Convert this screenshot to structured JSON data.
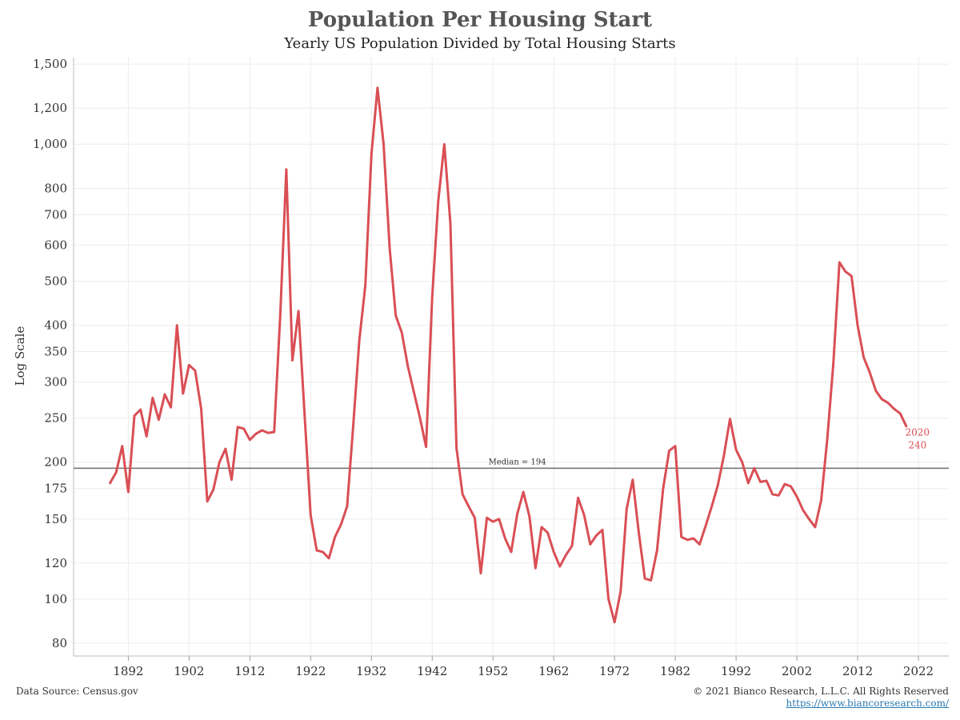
{
  "header": {
    "title": "Population Per Housing Start",
    "subtitle": "Yearly US Population Divided by Total Housing Starts"
  },
  "footer": {
    "source": "Data Source: Census.gov",
    "copyright": "© 2021 Bianco Research, L.L.C. All Rights Reserved",
    "link": "https://www.biancoresearch.com/"
  },
  "colors": {
    "line": "#d94f55",
    "median_line": "#777777",
    "grid": "#ececec"
  },
  "chart_data": {
    "type": "line",
    "title": "Population Per Housing Start",
    "subtitle": "Yearly US Population Divided by Total Housing Starts",
    "xlabel": "",
    "ylabel": "Log Scale",
    "yscale": "log",
    "ylim": [
      75,
      1550
    ],
    "xlim": [
      1883,
      2027
    ],
    "grid": true,
    "x_ticks": [
      1892,
      1902,
      1912,
      1922,
      1932,
      1942,
      1952,
      1962,
      1972,
      1982,
      1992,
      2002,
      2012,
      2022
    ],
    "y_ticks": [
      80,
      100,
      120,
      150,
      175,
      200,
      250,
      300,
      350,
      400,
      500,
      600,
      700,
      800,
      1000,
      1200,
      1500
    ],
    "y_tick_labels": [
      "80",
      "100",
      "120",
      "150",
      "175",
      "200",
      "250",
      "300",
      "350",
      "400",
      "500",
      "600",
      "700",
      "800",
      "1,000",
      "1,200",
      "1,500"
    ],
    "reference_line": {
      "value": 194,
      "label": "Median = 194"
    },
    "end_label": {
      "year": "2020",
      "value": "240"
    },
    "series": [
      {
        "x": [
          1889,
          1890,
          1891,
          1892,
          1893,
          1894,
          1895,
          1896,
          1897,
          1898,
          1899,
          1900,
          1901,
          1902,
          1903,
          1904,
          1905,
          1906,
          1907,
          1908,
          1909,
          1910,
          1911,
          1912,
          1913,
          1914,
          1915,
          1916,
          1917,
          1918,
          1919,
          1920,
          1921,
          1922,
          1923,
          1924,
          1925,
          1926,
          1927,
          1928,
          1929,
          1930,
          1931,
          1932,
          1933,
          1934,
          1935,
          1936,
          1937,
          1938,
          1939,
          1940,
          1941,
          1942,
          1943,
          1944,
          1945,
          1946,
          1947,
          1948,
          1949,
          1950,
          1951,
          1952,
          1953,
          1954,
          1955,
          1956,
          1957,
          1958,
          1959,
          1960,
          1961,
          1962,
          1963,
          1964,
          1965,
          1966,
          1967,
          1968,
          1969,
          1970,
          1971,
          1972,
          1973,
          1974,
          1975,
          1976,
          1977,
          1978,
          1979,
          1980,
          1981,
          1982,
          1983,
          1984,
          1985,
          1986,
          1987,
          1988,
          1989,
          1990,
          1991,
          1992,
          1993,
          1994,
          1995,
          1996,
          1997,
          1998,
          1999,
          2000,
          2001,
          2002,
          2003,
          2004,
          2005,
          2006,
          2007,
          2008,
          2009,
          2010,
          2011,
          2012,
          2013,
          2014,
          2015,
          2016,
          2017,
          2018,
          2019,
          2020
        ],
        "values": [
          180,
          190,
          217,
          172,
          253,
          261,
          228,
          277,
          248,
          282,
          264,
          400,
          283,
          327,
          318,
          262,
          164,
          174,
          200,
          214,
          183,
          239,
          237,
          224,
          231,
          235,
          232,
          233,
          420,
          880,
          335,
          430,
          255,
          153,
          128,
          127,
          123,
          137,
          146,
          160,
          240,
          370,
          490,
          950,
          1330,
          1000,
          590,
          420,
          385,
          325,
          285,
          250,
          216,
          460,
          750,
          1000,
          670,
          215,
          170,
          160,
          151,
          114,
          151,
          148,
          150,
          136,
          127,
          154,
          172,
          152,
          117,
          144,
          140,
          127,
          118,
          125,
          131,
          167,
          153,
          132,
          138,
          142,
          100,
          89,
          104,
          158,
          183,
          140,
          111,
          110,
          128,
          175,
          212,
          217,
          137,
          135,
          136,
          132,
          145,
          160,
          178,
          207,
          249,
          213,
          200,
          180,
          194,
          181,
          182,
          170,
          169,
          179,
          177,
          168,
          157,
          150,
          144,
          165,
          225,
          330,
          550,
          525,
          513,
          400,
          340,
          315,
          287,
          275,
          270,
          262,
          256,
          240
        ]
      }
    ]
  }
}
